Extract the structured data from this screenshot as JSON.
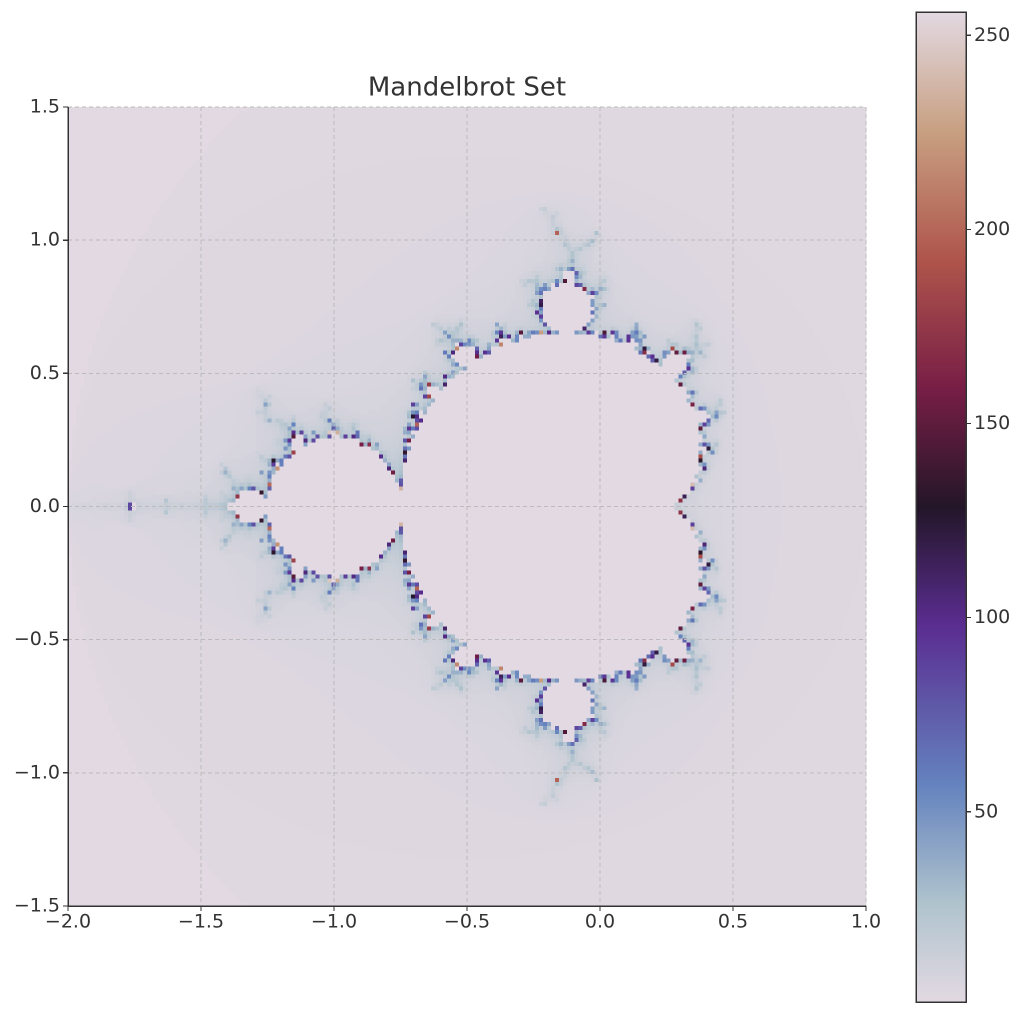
{
  "chart_data": {
    "type": "heatmap",
    "title": "Mandelbrot Set",
    "function": "mandelbrot",
    "max_iter": 256,
    "colormap": "twilight",
    "xlim": [
      -2.0,
      1.0
    ],
    "ylim": [
      -1.5,
      1.5
    ],
    "xticks": [
      {
        "value": -2,
        "label": "−2.0"
      },
      {
        "value": -1.5,
        "label": "−1.5"
      },
      {
        "value": -1,
        "label": "−1.0"
      },
      {
        "value": -0.5,
        "label": "−0.5"
      },
      {
        "value": 0,
        "label": "0.0"
      },
      0.5,
      {
        "value": 1,
        "label": "1.0"
      }
    ],
    "yticks": [
      {
        "value": -1.5,
        "label": "−1.5"
      },
      {
        "value": -1,
        "label": "−1.0"
      },
      {
        "value": -0.5,
        "label": "−0.5"
      },
      {
        "value": 0,
        "label": "0.0"
      },
      0.5,
      {
        "value": 1,
        "label": "1.0"
      },
      1.5
    ],
    "grid": true,
    "clim": [
      1,
      256
    ],
    "cticks": [
      50,
      100,
      150,
      200,
      250
    ]
  }
}
